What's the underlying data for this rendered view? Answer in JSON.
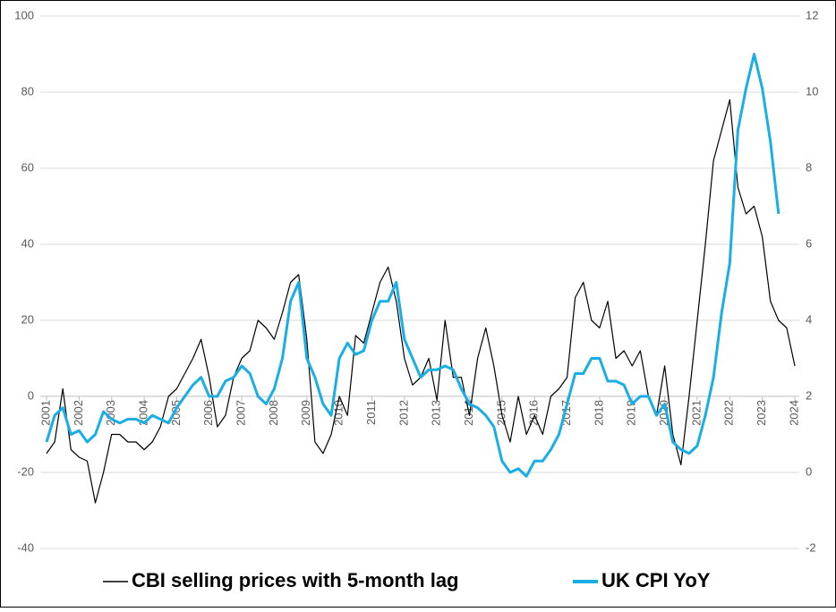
{
  "chart_data": {
    "type": "line",
    "x": [
      2001,
      2001.25,
      2001.5,
      2001.75,
      2002,
      2002.25,
      2002.5,
      2002.75,
      2003,
      2003.25,
      2003.5,
      2003.75,
      2004,
      2004.25,
      2004.5,
      2004.75,
      2005,
      2005.25,
      2005.5,
      2005.75,
      2006,
      2006.25,
      2006.5,
      2006.75,
      2007,
      2007.25,
      2007.5,
      2007.75,
      2008,
      2008.25,
      2008.5,
      2008.75,
      2009,
      2009.25,
      2009.5,
      2009.75,
      2010,
      2010.25,
      2010.5,
      2010.75,
      2011,
      2011.25,
      2011.5,
      2011.75,
      2012,
      2012.25,
      2012.5,
      2012.75,
      2013,
      2013.25,
      2013.5,
      2013.75,
      2014,
      2014.25,
      2014.5,
      2014.75,
      2015,
      2015.25,
      2015.5,
      2015.75,
      2016,
      2016.25,
      2016.5,
      2016.75,
      2017,
      2017.25,
      2017.5,
      2017.75,
      2018,
      2018.25,
      2018.5,
      2018.75,
      2019,
      2019.25,
      2019.5,
      2019.75,
      2020,
      2020.25,
      2020.5,
      2020.75,
      2021,
      2021.25,
      2021.5,
      2021.75,
      2022,
      2022.25,
      2022.5,
      2022.75,
      2023,
      2023.25,
      2023.5,
      2023.75,
      2024
    ],
    "xlim": [
      2001,
      2024
    ],
    "xticks": [
      2001,
      2002,
      2003,
      2004,
      2005,
      2006,
      2007,
      2008,
      2009,
      2010,
      2011,
      2012,
      2013,
      2014,
      2015,
      2016,
      2017,
      2018,
      2019,
      2020,
      2021,
      2022,
      2023,
      2024
    ],
    "ylim": [
      -40,
      100
    ],
    "yticks": [
      -40,
      -20,
      0,
      20,
      40,
      60,
      80,
      100
    ],
    "y2lim": [
      -2,
      12
    ],
    "y2ticks": [
      -2,
      0,
      2,
      4,
      6,
      8,
      10,
      12
    ],
    "series": [
      {
        "name": "CBI selling prices with 5-month lag",
        "color": "#000000",
        "values": [
          -15,
          -12,
          2,
          -14,
          -16,
          -17,
          -28,
          -20,
          -10,
          -10,
          -12,
          -12,
          -14,
          -12,
          -8,
          0,
          2,
          6,
          10,
          15,
          5,
          -8,
          -5,
          5,
          10,
          12,
          20,
          18,
          15,
          22,
          30,
          32,
          15,
          -12,
          -15,
          -10,
          0,
          -5,
          16,
          14,
          22,
          30,
          34,
          25,
          10,
          3,
          5,
          10,
          -1,
          20,
          5,
          5,
          -5,
          10,
          18,
          8,
          -5,
          -12,
          0,
          -10,
          -5,
          -10,
          0,
          2,
          5,
          26,
          30,
          20,
          18,
          25,
          10,
          12,
          8,
          12,
          0,
          -5,
          8,
          -10,
          -18,
          0,
          20,
          40,
          62,
          70,
          78,
          55,
          48,
          50,
          42,
          25,
          20,
          18,
          8
        ]
      },
      {
        "name": "UK CPI YoY",
        "color": "#1aaee5",
        "axis": "y2",
        "values": [
          0.8,
          1.5,
          1.7,
          1.0,
          1.1,
          0.8,
          1.0,
          1.6,
          1.4,
          1.3,
          1.4,
          1.4,
          1.3,
          1.5,
          1.4,
          1.3,
          1.7,
          2.0,
          2.3,
          2.5,
          2.0,
          2.0,
          2.4,
          2.5,
          2.8,
          2.6,
          2.0,
          1.8,
          2.2,
          3.0,
          4.5,
          5.0,
          3.0,
          2.5,
          1.8,
          1.5,
          3.0,
          3.4,
          3.1,
          3.2,
          4.0,
          4.5,
          4.5,
          5.0,
          3.5,
          3.0,
          2.5,
          2.7,
          2.7,
          2.8,
          2.7,
          2.2,
          1.8,
          1.7,
          1.5,
          1.2,
          0.3,
          0.0,
          0.1,
          -0.1,
          0.3,
          0.3,
          0.6,
          1.0,
          1.8,
          2.6,
          2.6,
          3.0,
          3.0,
          2.4,
          2.4,
          2.3,
          1.8,
          2.0,
          2.0,
          1.5,
          1.8,
          0.8,
          0.6,
          0.5,
          0.7,
          1.5,
          2.5,
          4.2,
          5.5,
          9.0,
          10.1,
          11.0,
          10.1,
          8.7,
          6.8,
          null,
          null
        ]
      }
    ]
  }
}
